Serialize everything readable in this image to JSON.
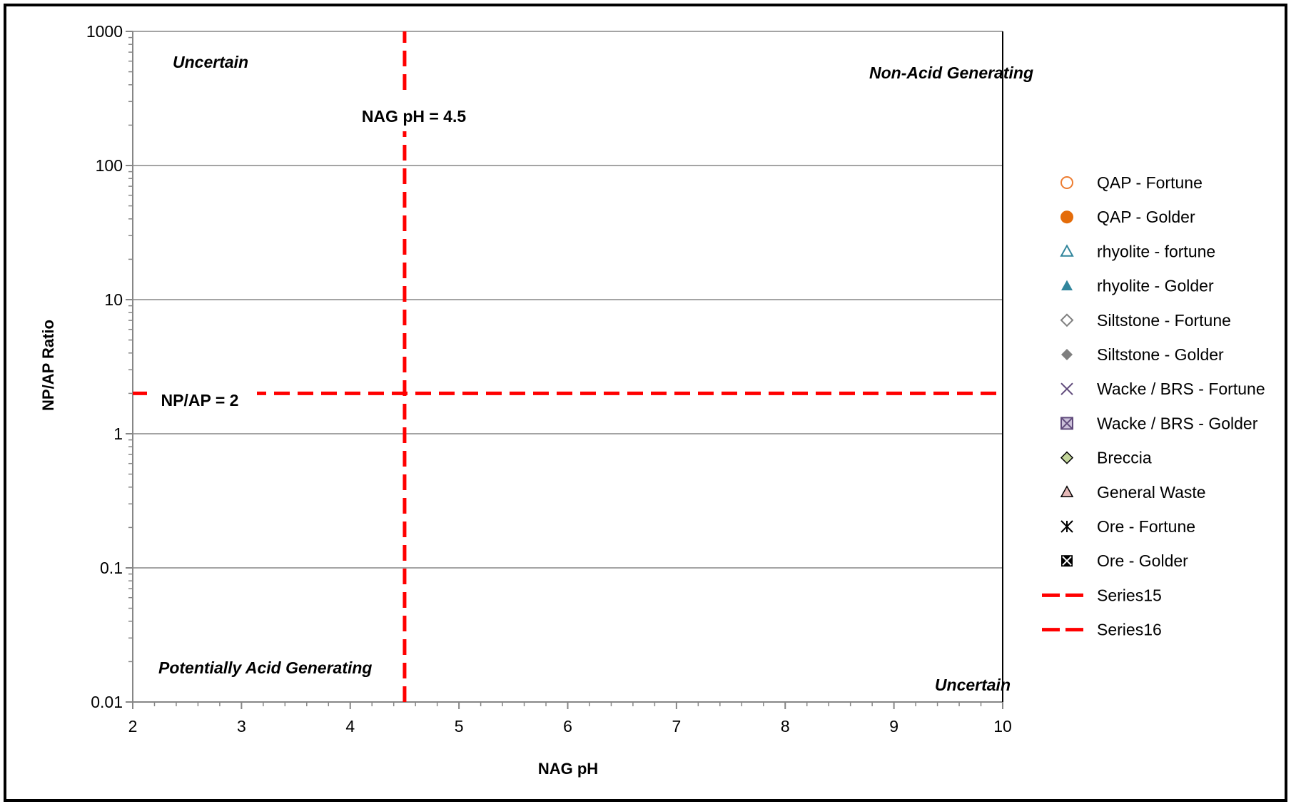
{
  "chart_data": {
    "type": "scatter",
    "title": "",
    "xlabel": "NAG pH",
    "ylabel": "NP/AP Ratio",
    "xlim": [
      2,
      10
    ],
    "ylim": [
      0.01,
      1000
    ],
    "yscale": "log",
    "grid": "horizontal major gridlines",
    "x_ticks": [
      "2",
      "3",
      "4",
      "5",
      "6",
      "7",
      "8",
      "9",
      "10"
    ],
    "y_ticks": [
      "1000",
      "100",
      "10",
      "1",
      "0.1",
      "0.01"
    ],
    "legend_position": "right",
    "series": [
      {
        "name": "QAP - Fortune",
        "marker": "circle-open",
        "color": "#ED7D31",
        "points": []
      },
      {
        "name": "QAP - Golder",
        "marker": "circle-filled",
        "color": "#E46C0A",
        "points": []
      },
      {
        "name": "rhyolite - fortune",
        "marker": "triangle-open",
        "color": "#31859C",
        "points": []
      },
      {
        "name": "rhyolite - Golder",
        "marker": "triangle-filled",
        "color": "#31859C",
        "points": []
      },
      {
        "name": "Siltstone - Fortune",
        "marker": "diamond-open",
        "color": "#7F7F7F",
        "points": []
      },
      {
        "name": "Siltstone - Golder",
        "marker": "diamond-filled",
        "color": "#7F7F7F",
        "points": []
      },
      {
        "name": "Wacke / BRS - Fortune",
        "marker": "x",
        "color": "#604A7B",
        "points": []
      },
      {
        "name": "Wacke / BRS - Golder",
        "marker": "x-square",
        "color": "#604A7B",
        "points": []
      },
      {
        "name": "Breccia",
        "marker": "diamond-filled-outlined",
        "color": "#C3D69B",
        "points": []
      },
      {
        "name": "General Waste",
        "marker": "triangle-filled-outlined",
        "color": "#E6B9B8",
        "points": []
      },
      {
        "name": "Ore - Fortune",
        "marker": "asterisk",
        "color": "#000000",
        "points": []
      },
      {
        "name": "Ore - Golder",
        "marker": "x-square-black",
        "color": "#000000",
        "points": []
      },
      {
        "name": "Series15",
        "marker": "dashed-line",
        "color": "#FF0000",
        "points": [
          [
            4.5,
            0.01
          ],
          [
            4.5,
            1000
          ]
        ]
      },
      {
        "name": "Series16",
        "marker": "dashed-line",
        "color": "#FF0000",
        "points": [
          [
            2,
            2
          ],
          [
            10,
            2
          ]
        ]
      }
    ],
    "annotations": {
      "top_left": "Uncertain",
      "top_right": "Non-Acid Generating",
      "bottom_left": "Potentially Acid Generating",
      "bottom_right": "Uncertain",
      "vline_label": "NAG pH = 4.5",
      "hline_label": "NP/AP = 2"
    },
    "colors": {
      "threshold_line": "#FF0000",
      "grid": "#868686"
    }
  }
}
